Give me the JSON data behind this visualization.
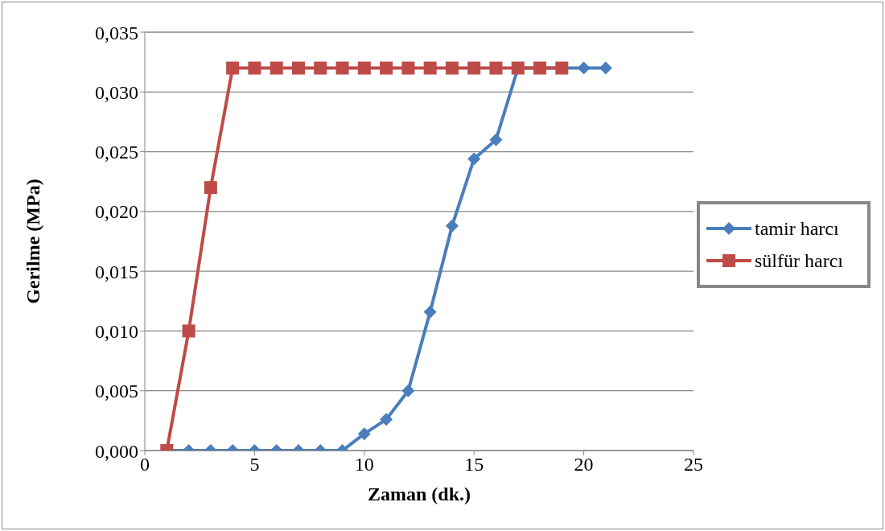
{
  "chart_data": {
    "type": "line",
    "xlabel": "Zaman (dk.)",
    "ylabel": "Gerilme (MPa)",
    "xlim": [
      0,
      25
    ],
    "xticks": [
      0,
      5,
      10,
      15,
      20,
      25
    ],
    "ylim": [
      0,
      0.035
    ],
    "yticks": [
      {
        "value": 0,
        "label": "0,000"
      },
      {
        "value": 0.005,
        "label": "0,005"
      },
      {
        "value": 0.01,
        "label": "0,010"
      },
      {
        "value": 0.015,
        "label": "0,015"
      },
      {
        "value": 0.02,
        "label": "0,020"
      },
      {
        "value": 0.025,
        "label": "0,025"
      },
      {
        "value": 0.03,
        "label": "0,030"
      },
      {
        "value": 0.035,
        "label": "0,035"
      }
    ],
    "grid": "y",
    "legend": "right",
    "line_style": "solid",
    "series": [
      {
        "name": "tamir harcı",
        "color": "#4a7ebb",
        "marker": "diamond",
        "x": [
          1,
          2,
          3,
          4,
          5,
          6,
          7,
          8,
          9,
          10,
          11,
          12,
          13,
          14,
          15,
          16,
          17,
          18,
          19,
          20,
          21
        ],
        "values": [
          0,
          0,
          0,
          0,
          0,
          0,
          0,
          0,
          0,
          0.0014,
          0.0026,
          0.005,
          0.0116,
          0.0188,
          0.0244,
          0.026,
          0.032,
          0.032,
          0.032,
          0.032,
          0.032
        ]
      },
      {
        "name": "sülfür harcı",
        "color": "#be4b48",
        "marker": "square",
        "x": [
          1,
          2,
          3,
          4,
          5,
          6,
          7,
          8,
          9,
          10,
          11,
          12,
          13,
          14,
          15,
          16,
          17,
          18,
          19
        ],
        "values": [
          0,
          0.01,
          0.022,
          0.032,
          0.032,
          0.032,
          0.032,
          0.032,
          0.032,
          0.032,
          0.032,
          0.032,
          0.032,
          0.032,
          0.032,
          0.032,
          0.032,
          0.032,
          0.032
        ]
      }
    ]
  }
}
